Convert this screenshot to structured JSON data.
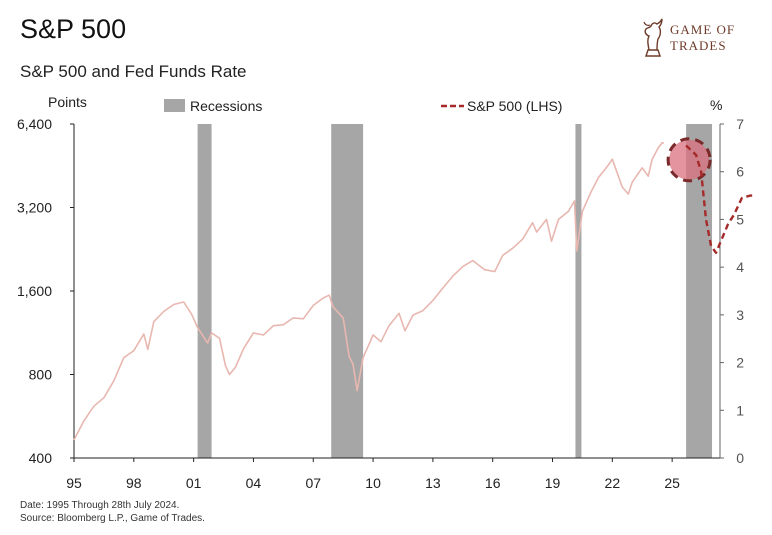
{
  "header": {
    "title": "S&P 500",
    "subtitle": "S&P 500 and Fed Funds Rate"
  },
  "logo": {
    "line1": "GAME OF",
    "line2": "TRADES",
    "icon": "bull-chess-knight-icon",
    "color": "#6e3b2a"
  },
  "footer": {
    "date_note": "Date: 1995 Through 28th July 2024.",
    "source_note": "Source: Bloomberg L.P., Game of Trades."
  },
  "chart_data": {
    "type": "line",
    "title": "S&P 500 and Fed Funds Rate",
    "left_axis": {
      "label": "Points",
      "scale": "log",
      "ticks": [
        400,
        800,
        1600,
        3200,
        6400
      ],
      "tick_labels": [
        "400",
        "800",
        "1,600",
        "3,200",
        "6,400"
      ],
      "range": [
        400,
        6400
      ]
    },
    "right_axis": {
      "label": "%",
      "ticks": [
        0,
        1,
        2,
        3,
        4,
        5,
        6,
        7
      ],
      "range": [
        0,
        7
      ]
    },
    "x_axis": {
      "ticks": [
        1995,
        1998,
        2001,
        2004,
        2007,
        2010,
        2013,
        2016,
        2019,
        2022,
        2025
      ],
      "tick_labels": [
        "95",
        "98",
        "01",
        "04",
        "07",
        "10",
        "13",
        "16",
        "19",
        "22",
        "25"
      ],
      "range": [
        1995,
        2027.4
      ]
    },
    "legend": {
      "position": "top",
      "items": [
        {
          "label": "Recessions",
          "type": "box",
          "color": "#a6a6a6"
        },
        {
          "label": "S&P 500 (LHS)",
          "type": "dashed-line",
          "color": "#a52a2a"
        }
      ]
    },
    "recessions": [
      {
        "start": 2001.2,
        "end": 2001.9
      },
      {
        "start": 2007.9,
        "end": 2009.5
      },
      {
        "start": 2020.15,
        "end": 2020.45
      },
      {
        "start": 2025.7,
        "end": 2027.0
      }
    ],
    "series": [
      {
        "name": "S&P 500 (LHS)",
        "style": "solid",
        "color": "#e8b7b0",
        "points": [
          [
            1995.0,
            465
          ],
          [
            1995.5,
            545
          ],
          [
            1996.0,
            615
          ],
          [
            1996.5,
            660
          ],
          [
            1997.0,
            760
          ],
          [
            1997.5,
            920
          ],
          [
            1998.0,
            975
          ],
          [
            1998.5,
            1120
          ],
          [
            1998.7,
            985
          ],
          [
            1999.0,
            1240
          ],
          [
            1999.5,
            1350
          ],
          [
            2000.0,
            1430
          ],
          [
            2000.5,
            1460
          ],
          [
            2000.9,
            1320
          ],
          [
            2001.2,
            1180
          ],
          [
            2001.7,
            1040
          ],
          [
            2001.9,
            1130
          ],
          [
            2002.3,
            1080
          ],
          [
            2002.6,
            860
          ],
          [
            2002.8,
            800
          ],
          [
            2003.1,
            850
          ],
          [
            2003.5,
            990
          ],
          [
            2004.0,
            1130
          ],
          [
            2004.5,
            1110
          ],
          [
            2005.0,
            1200
          ],
          [
            2005.5,
            1210
          ],
          [
            2006.0,
            1280
          ],
          [
            2006.5,
            1270
          ],
          [
            2007.0,
            1420
          ],
          [
            2007.5,
            1510
          ],
          [
            2007.8,
            1545
          ],
          [
            2008.0,
            1400
          ],
          [
            2008.5,
            1280
          ],
          [
            2008.8,
            930
          ],
          [
            2009.0,
            870
          ],
          [
            2009.2,
            700
          ],
          [
            2009.5,
            920
          ],
          [
            2010.0,
            1110
          ],
          [
            2010.4,
            1050
          ],
          [
            2010.8,
            1200
          ],
          [
            2011.3,
            1330
          ],
          [
            2011.6,
            1150
          ],
          [
            2012.0,
            1310
          ],
          [
            2012.5,
            1360
          ],
          [
            2013.0,
            1480
          ],
          [
            2013.5,
            1640
          ],
          [
            2014.0,
            1810
          ],
          [
            2014.5,
            1960
          ],
          [
            2015.0,
            2060
          ],
          [
            2015.6,
            1910
          ],
          [
            2016.1,
            1880
          ],
          [
            2016.5,
            2150
          ],
          [
            2017.0,
            2280
          ],
          [
            2017.5,
            2460
          ],
          [
            2018.0,
            2820
          ],
          [
            2018.2,
            2610
          ],
          [
            2018.7,
            2900
          ],
          [
            2018.95,
            2420
          ],
          [
            2019.3,
            2900
          ],
          [
            2019.8,
            3100
          ],
          [
            2020.1,
            3380
          ],
          [
            2020.22,
            2230
          ],
          [
            2020.5,
            3100
          ],
          [
            2020.9,
            3600
          ],
          [
            2021.3,
            4100
          ],
          [
            2021.8,
            4550
          ],
          [
            2022.0,
            4780
          ],
          [
            2022.5,
            3790
          ],
          [
            2022.8,
            3580
          ],
          [
            2023.0,
            3950
          ],
          [
            2023.5,
            4450
          ],
          [
            2023.8,
            4150
          ],
          [
            2024.0,
            4780
          ],
          [
            2024.3,
            5250
          ],
          [
            2024.5,
            5480
          ],
          [
            2024.58,
            5460
          ]
        ]
      },
      {
        "name": "",
        "style": "dashed",
        "color": "#a52a2a",
        "points": [
          [
            2025.7,
            6.55
          ],
          [
            2026.2,
            6.35
          ],
          [
            2026.45,
            6.0
          ],
          [
            2026.7,
            5.0
          ],
          [
            2026.95,
            4.45
          ],
          [
            2027.2,
            4.3
          ],
          [
            2027.5,
            4.6
          ],
          [
            2027.8,
            4.9
          ],
          [
            2028.1,
            5.1
          ],
          [
            2028.5,
            5.45
          ],
          [
            2028.9,
            5.5
          ],
          [
            2029.2,
            5.5
          ]
        ]
      }
    ],
    "highlight": {
      "x": 2025.85,
      "value": 6.25,
      "color": "#d9707d"
    }
  }
}
